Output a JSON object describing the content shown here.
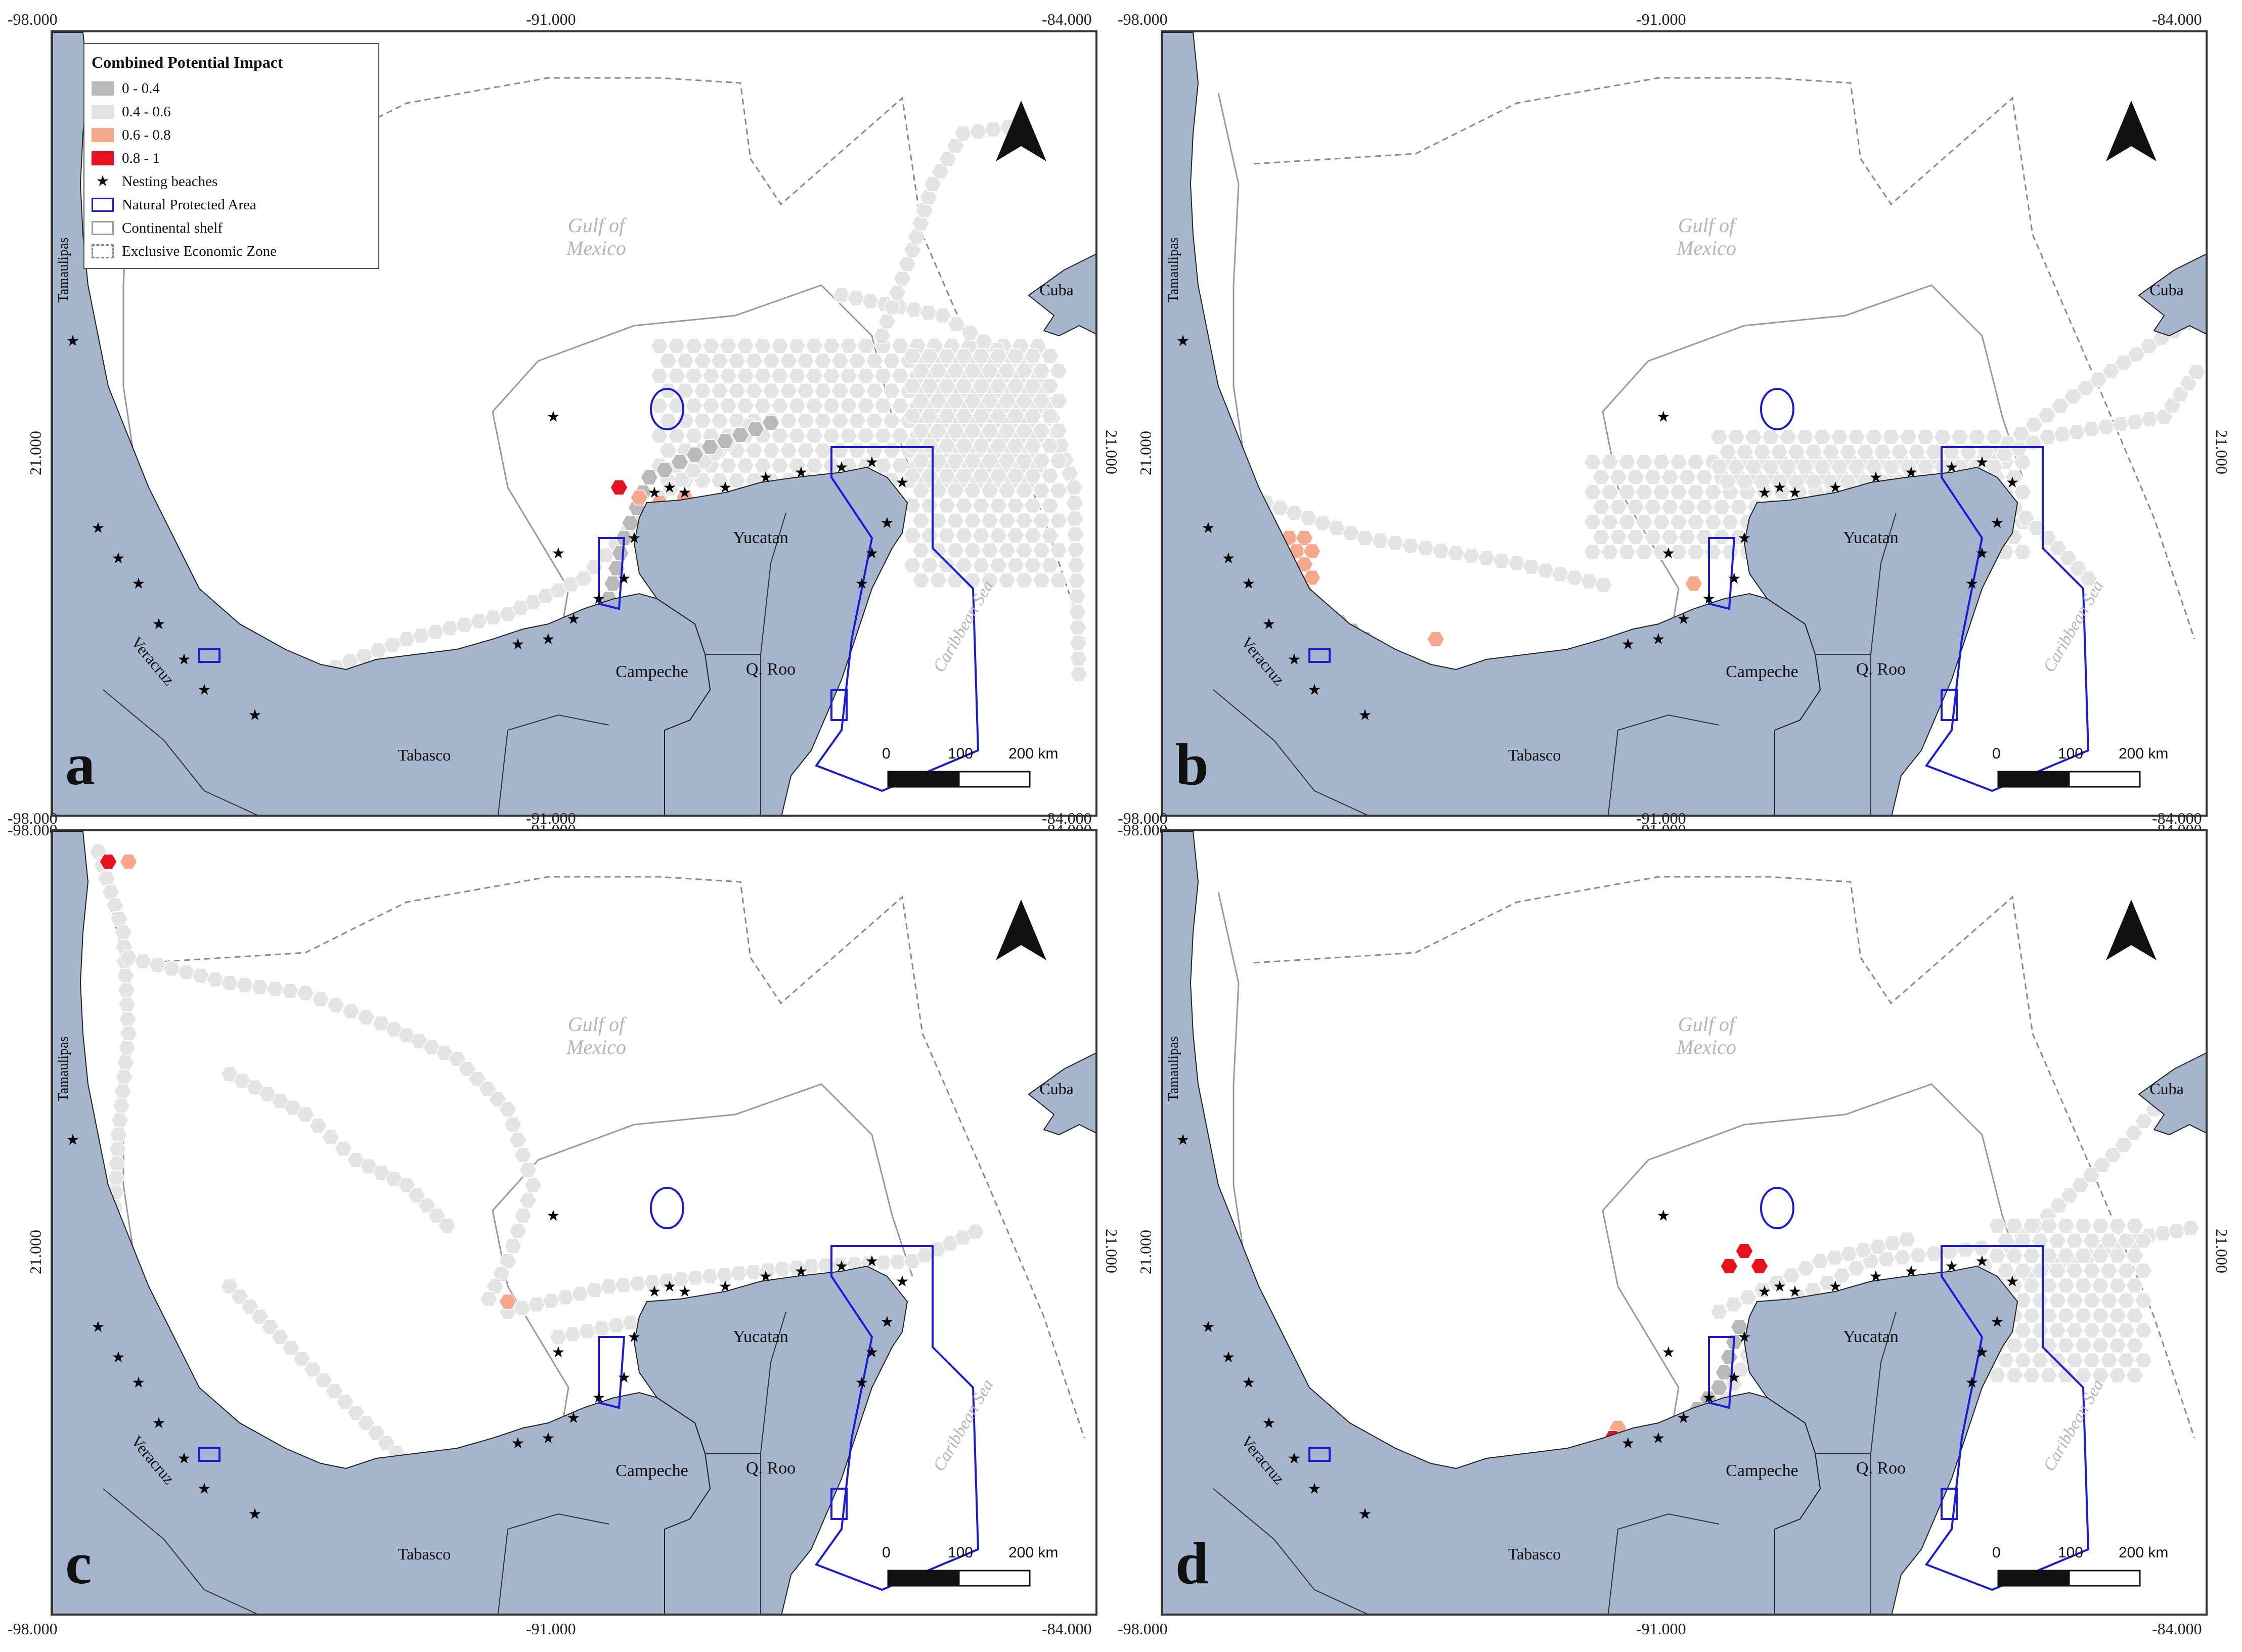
{
  "legend": {
    "title": "Combined Potential Impact",
    "items": [
      {
        "label": "0 - 0.4",
        "color": "#b9b9b9",
        "kind": "fill"
      },
      {
        "label": "0.4 - 0.6",
        "color": "#e4e4e4",
        "kind": "fill"
      },
      {
        "label": "0.6 - 0.8",
        "color": "#f6a98a",
        "kind": "fill"
      },
      {
        "label": "0.8 - 1",
        "color": "#e8121f",
        "kind": "fill"
      },
      {
        "label": "Nesting beaches",
        "color": "#000000",
        "kind": "star"
      },
      {
        "label": "Natural Protected Area",
        "color": "#1a1adb",
        "kind": "outline"
      },
      {
        "label": "Continental shelf",
        "color": "#9a9a9a",
        "kind": "outline"
      },
      {
        "label": "Exclusive Economic Zone",
        "color": "#8a8a8a",
        "kind": "dashed"
      }
    ]
  },
  "coords": {
    "lon_left": "-98.000",
    "lon_mid": "-91.000",
    "lon_right": "-84.000",
    "lat": "21.000"
  },
  "place_labels": {
    "gulf": "Gulf of",
    "mexico": "Mexico",
    "caribbean": "Caribbean Sea",
    "cuba": "Cuba",
    "yucatan": "Yucatan",
    "campeche": "Campeche",
    "qroo": "Q. Roo",
    "tabasco": "Tabasco",
    "veracruz": "Veracruz",
    "tamaulipas": "Tamaulipas"
  },
  "scale": {
    "zero": "0",
    "hundred": "100",
    "two_hundred": "200 km"
  },
  "panels": [
    {
      "letter": "a"
    },
    {
      "letter": "b"
    },
    {
      "letter": "c"
    },
    {
      "letter": "d"
    }
  ],
  "colors": {
    "land": "#a5b6cc",
    "sea": "#ffffff",
    "low": "#b9b9b9",
    "midlow": "#e4e4e4",
    "high": "#f6a98a",
    "very_high": "#e8121f",
    "protected": "#1a1adb"
  }
}
